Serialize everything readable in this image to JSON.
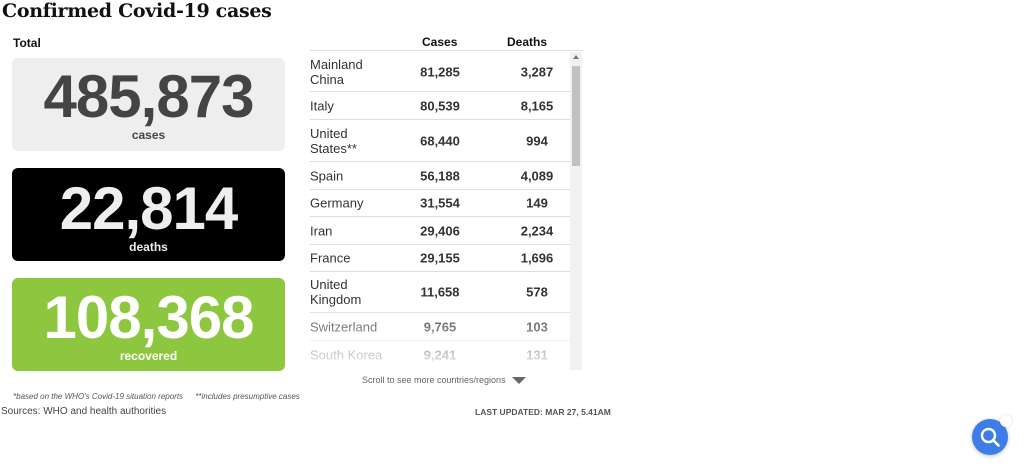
{
  "title": "Confirmed Covid-19 cases",
  "total_label": "Total",
  "totals": {
    "cases": {
      "value": "485,873",
      "label": "cases",
      "color": "#eeeeee"
    },
    "deaths": {
      "value": "22,814",
      "label": "deaths",
      "color": "#000000"
    },
    "recovered": {
      "value": "108,368",
      "label": "recovered",
      "color": "#8dc63f"
    }
  },
  "table": {
    "headers": {
      "cases": "Cases",
      "deaths": "Deaths"
    },
    "rows": [
      {
        "country": "Mainland China",
        "cases": "81,285",
        "deaths": "3,287"
      },
      {
        "country": "Italy",
        "cases": "80,539",
        "deaths": "8,165"
      },
      {
        "country": "United States**",
        "cases": "68,440",
        "deaths": "994"
      },
      {
        "country": "Spain",
        "cases": "56,188",
        "deaths": "4,089"
      },
      {
        "country": "Germany",
        "cases": "31,554",
        "deaths": "149"
      },
      {
        "country": "Iran",
        "cases": "29,406",
        "deaths": "2,234"
      },
      {
        "country": "France",
        "cases": "29,155",
        "deaths": "1,696"
      },
      {
        "country": "United Kingdom",
        "cases": "11,658",
        "deaths": "578"
      },
      {
        "country": "Switzerland",
        "cases": "9,765",
        "deaths": "103"
      },
      {
        "country": "South Korea",
        "cases": "9,241",
        "deaths": "131"
      }
    ]
  },
  "scroll_hint": "Scroll to see more countries/regions",
  "notes": [
    "*based on the WHO's Covid-19 situation reports",
    "**includes presumptive cases"
  ],
  "sources": "Sources: WHO and health authorities",
  "last_updated": "LAST UPDATED: MAR 27, 5.41AM",
  "fab_icon": "search-icon"
}
